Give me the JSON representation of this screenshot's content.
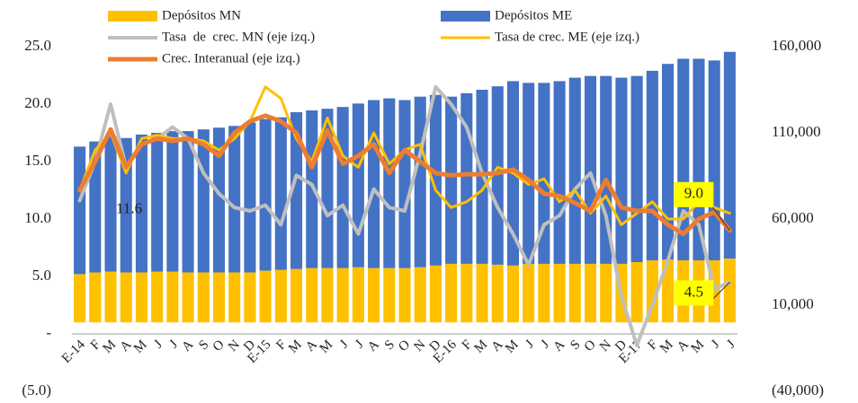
{
  "chart_data": {
    "type": "combo",
    "stacked": true,
    "categories": [
      "E-14",
      "F",
      "M",
      "A",
      "M",
      "J",
      "J",
      "A",
      "S",
      "O",
      "N",
      "D",
      "E-15",
      "F",
      "M",
      "A",
      "M",
      "J",
      "J",
      "A",
      "S",
      "O",
      "N",
      "D",
      "E-16",
      "F",
      "M",
      "A",
      "M",
      "J",
      "J",
      "A",
      "S",
      "O",
      "N",
      "D",
      "E-17",
      "F",
      "M",
      "A",
      "M",
      "J",
      "J"
    ],
    "series": [
      {
        "name": "Depósitos MN",
        "type": "bar",
        "axis": "y2",
        "color": "#FFC000",
        "values": [
          28000,
          29000,
          29500,
          29000,
          29000,
          29500,
          29500,
          29000,
          29000,
          29000,
          29000,
          29000,
          30000,
          30500,
          31000,
          31500,
          31500,
          31500,
          32000,
          31500,
          31500,
          31500,
          32000,
          33000,
          34000,
          34000,
          34000,
          33500,
          33000,
          34000,
          34000,
          34000,
          34000,
          34000,
          34000,
          34000,
          35000,
          36000,
          36500,
          36000,
          36000,
          36000,
          37000
        ]
      },
      {
        "name": "Depósitos ME",
        "type": "bar",
        "axis": "y2",
        "color": "#4472C4",
        "values": [
          74000,
          76000,
          78500,
          78000,
          80000,
          80500,
          81500,
          82000,
          83000,
          84000,
          85000,
          87000,
          88000,
          88500,
          91000,
          91500,
          92500,
          93500,
          95000,
          97500,
          98500,
          97500,
          99000,
          99000,
          97000,
          99000,
          101000,
          103500,
          107000,
          105000,
          105000,
          106000,
          108000,
          109000,
          109000,
          108000,
          108000,
          110000,
          113500,
          117000,
          117000,
          116000,
          120000
        ]
      },
      {
        "name": "Tasa  de  crec. MN (eje izq.)",
        "type": "line",
        "color": "#BFBFBF",
        "values": [
          11.6,
          15,
          20,
          14.5,
          16.5,
          17,
          18,
          17,
          14,
          12.2,
          11,
          10.7,
          11.2,
          9.5,
          13.8,
          13,
          10.3,
          11.2,
          8.7,
          12.6,
          11,
          10.7,
          15.7,
          21.5,
          20,
          18,
          14,
          11,
          8.7,
          6,
          9.5,
          10.3,
          12.6,
          14,
          10.3,
          3.3,
          -1,
          2.5,
          6.4,
          10.7,
          9.5,
          3.9,
          4.5
        ],
        "value_labels": [
          "11.6",
          null,
          null,
          null,
          null,
          null,
          null,
          null,
          null,
          null,
          null,
          null,
          null,
          null,
          null,
          null,
          null,
          null,
          null,
          null,
          null,
          null,
          null,
          null,
          null,
          null,
          null,
          null,
          null,
          null,
          null,
          null,
          null,
          null,
          null,
          null,
          null,
          null,
          null,
          null,
          null,
          null,
          "4.5"
        ]
      },
      {
        "name": "Tasa de crec. ME (eje izq.)",
        "type": "line",
        "color": "#FFC000",
        "values": [
          12.5,
          16,
          17.5,
          14,
          17,
          17.3,
          17,
          17,
          16.8,
          16,
          17,
          18.5,
          21.5,
          20.5,
          17,
          15,
          18.8,
          15.5,
          14.5,
          17.5,
          14.8,
          16,
          16.5,
          12.5,
          11,
          11.5,
          12.5,
          14.5,
          14,
          13,
          13.5,
          11.5,
          12.5,
          10.5,
          12,
          9.5,
          10.5,
          11.5,
          10,
          10,
          11.5,
          11,
          10.5
        ]
      },
      {
        "name": "Crec. Interanual (eje izq.)",
        "type": "line",
        "color": "#ED7D31",
        "values": [
          12.5,
          15,
          17.8,
          14.5,
          16.5,
          17,
          16.8,
          17,
          16.5,
          15.5,
          17.5,
          18.5,
          19,
          18.5,
          17.5,
          14.5,
          17.7,
          14.8,
          15.5,
          16.5,
          14,
          16,
          15,
          14,
          13.8,
          13.9,
          13.9,
          14,
          14.3,
          13.4,
          12.2,
          12,
          11.4,
          10.7,
          13.4,
          11,
          10.7,
          10.7,
          9.5,
          8.7,
          10,
          10.6,
          9.0
        ],
        "value_labels": [
          null,
          null,
          null,
          null,
          null,
          null,
          null,
          null,
          null,
          null,
          null,
          null,
          null,
          null,
          null,
          null,
          null,
          null,
          null,
          null,
          null,
          null,
          null,
          null,
          null,
          null,
          null,
          null,
          null,
          null,
          null,
          null,
          null,
          null,
          null,
          null,
          null,
          null,
          null,
          null,
          null,
          null,
          "9.0"
        ]
      }
    ],
    "label_box_color": "#FFFF00",
    "ylim": [
      -5,
      25
    ],
    "yticks": [
      {
        "value": 25,
        "label": "25.0"
      },
      {
        "value": 20,
        "label": "20.0"
      },
      {
        "value": 15,
        "label": "15.0"
      },
      {
        "value": 10,
        "label": "10.0"
      },
      {
        "value": 5,
        "label": "5.0"
      },
      {
        "value": 0,
        "label": "-"
      },
      {
        "value": -5,
        "label": "(5.0)"
      }
    ],
    "y2lim": [
      -40000,
      160000
    ],
    "y2ticks": [
      {
        "value": 160000,
        "label": "160,000"
      },
      {
        "value": 110000,
        "label": "110,000"
      },
      {
        "value": 60000,
        "label": "60,000"
      },
      {
        "value": 10000,
        "label": "10,000"
      },
      {
        "value": -40000,
        "label": "(40,000)"
      }
    ],
    "grid": false
  }
}
